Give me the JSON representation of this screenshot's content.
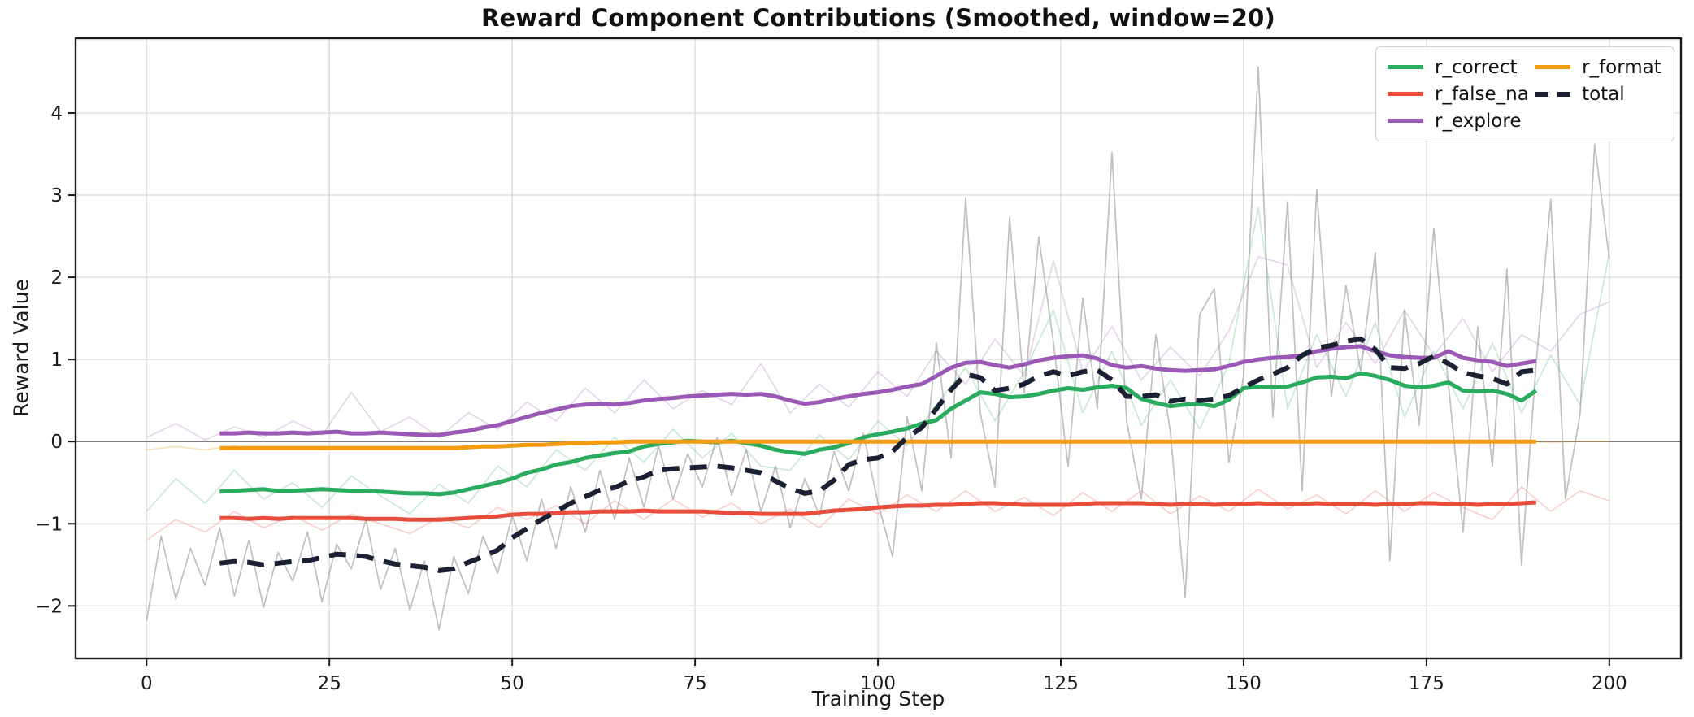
{
  "chart_data": {
    "type": "line",
    "title": "Reward Component Contributions (Smoothed, window=20)",
    "xlabel": "Training Step",
    "ylabel": "Reward Value",
    "xlim": [
      -9.7,
      209.8
    ],
    "ylim": [
      -2.64,
      4.91
    ],
    "xticks": [
      0,
      25,
      50,
      75,
      100,
      125,
      150,
      175,
      200
    ],
    "yticks": [
      -2,
      -1,
      0,
      1,
      2,
      3,
      4
    ],
    "grid": true,
    "legend_position": "upper right",
    "smoothing_window": 20,
    "zero_line": {
      "y": 0,
      "color": "#808080"
    },
    "grid_color": "#dcdcdc",
    "spine_color": "#1a1a1a",
    "series": [
      {
        "name": "r_correct",
        "color": "#2aab60",
        "dash": false,
        "x_start": 10,
        "x_step": 2,
        "values": [
          -0.61,
          -0.6,
          -0.59,
          -0.58,
          -0.6,
          -0.6,
          -0.59,
          -0.58,
          -0.59,
          -0.6,
          -0.6,
          -0.61,
          -0.62,
          -0.63,
          -0.63,
          -0.64,
          -0.62,
          -0.58,
          -0.54,
          -0.5,
          -0.45,
          -0.38,
          -0.34,
          -0.28,
          -0.25,
          -0.2,
          -0.17,
          -0.14,
          -0.12,
          -0.06,
          -0.03,
          -0.01,
          0.01,
          0.0,
          -0.01,
          0.01,
          -0.02,
          -0.05,
          -0.1,
          -0.13,
          -0.15,
          -0.1,
          -0.07,
          -0.02,
          0.05,
          0.09,
          0.12,
          0.16,
          0.22,
          0.26,
          0.4,
          0.5,
          0.6,
          0.58,
          0.54,
          0.55,
          0.58,
          0.62,
          0.65,
          0.63,
          0.66,
          0.68,
          0.65,
          0.52,
          0.47,
          0.43,
          0.45,
          0.46,
          0.43,
          0.51,
          0.65,
          0.67,
          0.66,
          0.67,
          0.72,
          0.78,
          0.79,
          0.77,
          0.83,
          0.8,
          0.75,
          0.68,
          0.66,
          0.68,
          0.72,
          0.62,
          0.61,
          0.62,
          0.58,
          0.5,
          0.62
        ]
      },
      {
        "name": "r_false_na",
        "color": "#e74c3c",
        "dash": false,
        "x_start": 10,
        "x_step": 2,
        "values": [
          -0.93,
          -0.93,
          -0.94,
          -0.93,
          -0.94,
          -0.93,
          -0.93,
          -0.93,
          -0.93,
          -0.93,
          -0.94,
          -0.94,
          -0.94,
          -0.95,
          -0.95,
          -0.95,
          -0.94,
          -0.93,
          -0.92,
          -0.91,
          -0.89,
          -0.88,
          -0.88,
          -0.87,
          -0.86,
          -0.86,
          -0.85,
          -0.85,
          -0.85,
          -0.84,
          -0.85,
          -0.85,
          -0.85,
          -0.85,
          -0.86,
          -0.87,
          -0.87,
          -0.88,
          -0.88,
          -0.88,
          -0.88,
          -0.86,
          -0.84,
          -0.83,
          -0.82,
          -0.8,
          -0.79,
          -0.78,
          -0.78,
          -0.77,
          -0.77,
          -0.76,
          -0.75,
          -0.75,
          -0.76,
          -0.77,
          -0.77,
          -0.77,
          -0.77,
          -0.76,
          -0.75,
          -0.75,
          -0.75,
          -0.75,
          -0.76,
          -0.77,
          -0.76,
          -0.76,
          -0.77,
          -0.76,
          -0.76,
          -0.75,
          -0.76,
          -0.76,
          -0.76,
          -0.75,
          -0.76,
          -0.76,
          -0.76,
          -0.77,
          -0.76,
          -0.76,
          -0.75,
          -0.75,
          -0.76,
          -0.76,
          -0.77,
          -0.76,
          -0.76,
          -0.75,
          -0.74
        ]
      },
      {
        "name": "r_explore",
        "color": "#9b59b6",
        "dash": false,
        "x_start": 10,
        "x_step": 2,
        "values": [
          0.1,
          0.1,
          0.11,
          0.1,
          0.1,
          0.11,
          0.1,
          0.11,
          0.12,
          0.1,
          0.1,
          0.11,
          0.1,
          0.09,
          0.08,
          0.08,
          0.11,
          0.13,
          0.17,
          0.2,
          0.25,
          0.3,
          0.35,
          0.39,
          0.43,
          0.45,
          0.46,
          0.45,
          0.47,
          0.5,
          0.52,
          0.53,
          0.55,
          0.56,
          0.57,
          0.58,
          0.57,
          0.58,
          0.55,
          0.5,
          0.46,
          0.48,
          0.52,
          0.55,
          0.58,
          0.6,
          0.63,
          0.67,
          0.7,
          0.8,
          0.9,
          0.96,
          0.97,
          0.93,
          0.9,
          0.94,
          0.99,
          1.02,
          1.04,
          1.05,
          1.01,
          0.93,
          0.9,
          0.92,
          0.89,
          0.87,
          0.86,
          0.87,
          0.88,
          0.92,
          0.97,
          1.0,
          1.02,
          1.03,
          1.05,
          1.1,
          1.13,
          1.15,
          1.16,
          1.1,
          1.05,
          1.03,
          1.02,
          1.02,
          1.1,
          1.02,
          0.99,
          0.97,
          0.92,
          0.95,
          0.98
        ]
      },
      {
        "name": "r_format",
        "color": "#f39c12",
        "dash": false,
        "x_start": 10,
        "x_step": 2,
        "values": [
          -0.08,
          -0.08,
          -0.08,
          -0.08,
          -0.08,
          -0.08,
          -0.08,
          -0.08,
          -0.08,
          -0.08,
          -0.08,
          -0.08,
          -0.08,
          -0.08,
          -0.08,
          -0.08,
          -0.08,
          -0.07,
          -0.06,
          -0.06,
          -0.05,
          -0.04,
          -0.04,
          -0.03,
          -0.02,
          -0.02,
          -0.01,
          -0.01,
          0.0,
          0.0,
          0.0,
          0.0,
          0.0,
          0.0,
          0.0,
          0.0,
          0.0,
          0.0,
          0.0,
          0.0,
          0.0,
          0.0,
          0.0,
          0.0,
          0.0,
          0.0,
          0.0,
          0.0,
          0.0,
          0.0,
          0.0,
          0.0,
          0.0,
          0.0,
          0.0,
          0.0,
          0.0,
          0.0,
          0.0,
          0.0,
          0.0,
          0.0,
          0.0,
          0.0,
          0.0,
          0.0,
          0.0,
          0.0,
          0.0,
          0.0,
          0.0,
          0.0,
          0.0,
          0.0,
          0.0,
          0.0,
          0.0,
          0.0,
          0.0,
          0.0,
          0.0,
          0.0,
          0.0,
          0.0,
          0.0,
          0.0,
          0.0,
          0.0,
          0.0,
          0.0,
          0.0
        ]
      },
      {
        "name": "total",
        "color": "#1b2032",
        "dash": true,
        "x_start": 10,
        "x_step": 2,
        "values": [
          -1.48,
          -1.46,
          -1.47,
          -1.5,
          -1.48,
          -1.46,
          -1.45,
          -1.41,
          -1.37,
          -1.38,
          -1.4,
          -1.45,
          -1.49,
          -1.51,
          -1.53,
          -1.57,
          -1.55,
          -1.47,
          -1.4,
          -1.32,
          -1.17,
          -1.06,
          -0.95,
          -0.85,
          -0.75,
          -0.67,
          -0.59,
          -0.56,
          -0.48,
          -0.43,
          -0.35,
          -0.33,
          -0.32,
          -0.31,
          -0.3,
          -0.32,
          -0.35,
          -0.38,
          -0.48,
          -0.57,
          -0.63,
          -0.6,
          -0.47,
          -0.28,
          -0.22,
          -0.2,
          -0.12,
          0.05,
          0.17,
          0.4,
          0.63,
          0.82,
          0.78,
          0.62,
          0.65,
          0.7,
          0.8,
          0.85,
          0.8,
          0.85,
          0.87,
          0.75,
          0.55,
          0.55,
          0.57,
          0.49,
          0.52,
          0.5,
          0.52,
          0.56,
          0.66,
          0.75,
          0.82,
          0.9,
          1.05,
          1.14,
          1.17,
          1.22,
          1.25,
          1.12,
          0.9,
          0.89,
          0.95,
          1.04,
          0.95,
          0.84,
          0.8,
          0.77,
          0.7,
          0.85,
          0.87
        ]
      }
    ],
    "raw_series": [
      {
        "name": "r_correct_raw",
        "color": "#2aab60",
        "opacity": 0.25,
        "x_start": 0,
        "x_step": 4,
        "values": [
          -0.85,
          -0.45,
          -0.75,
          -0.35,
          -0.7,
          -0.5,
          -0.8,
          -0.42,
          -0.66,
          -0.88,
          -0.52,
          -0.75,
          -0.3,
          -0.55,
          -0.1,
          -0.35,
          0.05,
          -0.25,
          0.15,
          -0.2,
          0.1,
          -0.3,
          -0.35,
          0.08,
          -0.22,
          0.25,
          -0.05,
          0.45,
          0.9,
          0.25,
          0.85,
          1.6,
          0.35,
          1.1,
          0.2,
          0.75,
          0.15,
          0.95,
          2.85,
          0.4,
          1.3,
          0.55,
          1.45,
          0.3,
          1.1,
          0.4,
          1.2,
          0.35,
          1.05,
          0.45,
          2.3
        ]
      },
      {
        "name": "r_false_na_raw",
        "color": "#e74c3c",
        "opacity": 0.25,
        "x_start": 0,
        "x_step": 4,
        "values": [
          -1.2,
          -0.95,
          -1.1,
          -0.85,
          -1.05,
          -0.9,
          -1.08,
          -0.88,
          -1.0,
          -1.12,
          -0.92,
          -1.05,
          -0.8,
          -0.95,
          -0.78,
          -1.0,
          -0.72,
          -0.95,
          -0.7,
          -0.92,
          -0.75,
          -1.0,
          -0.82,
          -1.05,
          -0.7,
          -0.88,
          -0.65,
          -0.85,
          -0.6,
          -0.85,
          -0.68,
          -0.9,
          -0.62,
          -0.85,
          -0.6,
          -0.88,
          -0.66,
          -0.85,
          -0.58,
          -0.82,
          -0.65,
          -0.88,
          -0.6,
          -0.85,
          -0.62,
          -0.8,
          -0.95,
          -0.55,
          -0.85,
          -0.6,
          -0.72
        ]
      },
      {
        "name": "r_explore_raw",
        "color": "#9b59b6",
        "opacity": 0.25,
        "x_start": 0,
        "x_step": 4,
        "values": [
          0.05,
          0.22,
          0.02,
          0.18,
          0.05,
          0.25,
          0.08,
          0.6,
          0.12,
          0.3,
          0.05,
          0.35,
          0.15,
          0.48,
          0.25,
          0.65,
          0.35,
          0.75,
          0.4,
          0.62,
          0.45,
          0.95,
          0.35,
          0.7,
          0.42,
          0.85,
          0.55,
          1.1,
          0.7,
          1.25,
          0.8,
          2.2,
          0.85,
          1.4,
          0.75,
          1.15,
          0.8,
          1.35,
          2.25,
          2.15,
          0.9,
          1.45,
          0.95,
          1.6,
          1.05,
          1.5,
          0.85,
          1.3,
          1.1,
          1.55,
          1.7
        ]
      },
      {
        "name": "r_format_raw",
        "color": "#f39c12",
        "opacity": 0.3,
        "x_start": 0,
        "x_step": 4,
        "values": [
          -0.1,
          -0.06,
          -0.1,
          -0.05,
          -0.09,
          -0.06,
          -0.1,
          -0.07,
          -0.09,
          -0.06,
          -0.09,
          -0.05,
          -0.07,
          -0.04,
          -0.05,
          -0.02,
          -0.03,
          -0.01,
          -0.02,
          0.0,
          -0.01,
          0.0,
          -0.01,
          0.0,
          -0.01,
          0.0,
          0.0,
          -0.01,
          0.0,
          0.0,
          -0.01,
          0.0,
          0.0,
          -0.01,
          0.0,
          0.0,
          -0.01,
          0.0,
          0.0,
          -0.01,
          0.0,
          0.0,
          -0.01,
          0.0,
          0.0,
          -0.01,
          0.0,
          0.0,
          -0.01,
          0.0,
          0.0
        ]
      },
      {
        "name": "total_raw",
        "color": "#808080",
        "opacity": 0.5,
        "x_start": 0,
        "x_step": 2,
        "values": [
          -2.18,
          -1.15,
          -1.92,
          -1.3,
          -1.75,
          -1.05,
          -1.88,
          -1.2,
          -2.02,
          -1.35,
          -1.7,
          -1.1,
          -1.95,
          -1.25,
          -1.55,
          -0.95,
          -1.8,
          -1.3,
          -2.05,
          -1.45,
          -2.29,
          -1.4,
          -1.85,
          -1.15,
          -1.6,
          -0.9,
          -1.45,
          -0.7,
          -1.3,
          -0.55,
          -1.1,
          -0.35,
          -0.95,
          -0.2,
          -0.8,
          -0.05,
          -0.7,
          -0.15,
          -0.55,
          0.05,
          -0.65,
          -0.1,
          -0.85,
          -0.3,
          -1.05,
          -0.45,
          -0.9,
          -0.12,
          -0.6,
          0.1,
          -0.75,
          -1.4,
          0.3,
          -0.6,
          1.2,
          -0.2,
          2.97,
          0.35,
          -0.55,
          2.73,
          0.6,
          2.49,
          1.2,
          -0.3,
          1.75,
          0.4,
          3.52,
          0.25,
          -0.7,
          1.3,
          0.1,
          -1.9,
          1.55,
          1.86,
          -0.25,
          0.8,
          4.56,
          0.3,
          2.92,
          -0.6,
          3.07,
          0.55,
          1.9,
          0.85,
          2.3,
          -1.45,
          1.6,
          0.2,
          2.6,
          0.7,
          -1.1,
          1.4,
          -0.3,
          2.1,
          -1.5,
          0.95,
          2.95,
          -0.7,
          0.33,
          3.62,
          2.23
        ]
      }
    ]
  }
}
